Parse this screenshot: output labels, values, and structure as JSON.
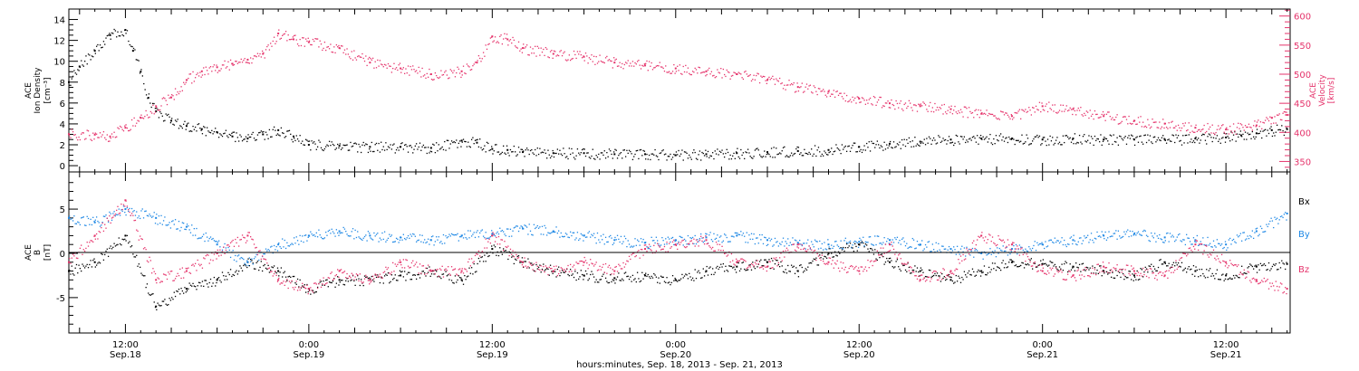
{
  "xlabel": "hours:minutes, Sep. 18, 2013 - Sep. 21, 2013",
  "x_ticks": [
    {
      "hours": 12,
      "time": "12:00",
      "date": "Sep.18"
    },
    {
      "hours": 24,
      "time": "0:00",
      "date": "Sep.19"
    },
    {
      "hours": 36,
      "time": "12:00",
      "date": "Sep.19"
    },
    {
      "hours": 48,
      "time": "0:00",
      "date": "Sep.20"
    },
    {
      "hours": 60,
      "time": "12:00",
      "date": "Sep.20"
    },
    {
      "hours": 72,
      "time": "0:00",
      "date": "Sep.21"
    },
    {
      "hours": 84,
      "time": "12:00",
      "date": "Sep.21"
    }
  ],
  "colors": {
    "black": "#000000",
    "pink": "#e5336b",
    "blue": "#1e88e5"
  },
  "chart_data": [
    {
      "type": "scatter",
      "panel": "top",
      "xlim_hours": [
        8.3,
        88.2
      ],
      "left_axis": {
        "label_lines": [
          "ACE",
          "Ion Density",
          "[cm⁻³]"
        ],
        "ylim": [
          -0.6,
          15
        ],
        "ticks": [
          0,
          2,
          4,
          6,
          8,
          10,
          12,
          14
        ]
      },
      "right_axis": {
        "label_lines": [
          "ACE",
          "Velocity",
          "[km/s]"
        ],
        "ylim": [
          332,
          612
        ],
        "ticks": [
          350,
          400,
          450,
          500,
          550,
          600
        ]
      },
      "series": [
        {
          "axis": "left",
          "color": "#000000",
          "x": [
            8.3,
            9,
            10,
            11,
            12,
            12.5,
            13,
            13.5,
            14,
            15,
            16,
            17,
            18,
            19,
            20,
            21,
            22,
            23,
            24,
            26,
            28,
            30,
            32,
            34,
            35,
            36,
            37,
            38,
            40,
            42,
            44,
            46,
            48,
            50,
            52,
            54,
            56,
            58,
            60,
            62,
            64,
            66,
            68,
            70,
            72,
            74,
            76,
            78,
            80,
            82,
            84,
            85,
            86,
            87,
            88
          ],
          "y": [
            8,
            9.5,
            11,
            12.5,
            13,
            11,
            9,
            6.5,
            5.2,
            4.3,
            3.8,
            3.5,
            3.2,
            2.8,
            2.6,
            3,
            3.4,
            2.8,
            2,
            1.9,
            1.8,
            1.8,
            1.7,
            2.4,
            2.2,
            1.6,
            1.5,
            1.3,
            1.2,
            1.2,
            1.1,
            1.1,
            1,
            1.1,
            1.2,
            1.3,
            1.4,
            1.5,
            1.8,
            2.1,
            2.3,
            2.5,
            2.6,
            2.6,
            2.5,
            2.6,
            2.5,
            2.5,
            2.5,
            2.6,
            2.7,
            2.9,
            3.1,
            3.4,
            3.5
          ]
        },
        {
          "axis": "right",
          "color": "#e5336b",
          "x": [
            8.3,
            10,
            11,
            12,
            13,
            14,
            15,
            16,
            17,
            18,
            19,
            20,
            21,
            22,
            23,
            24,
            26,
            28,
            30,
            32,
            34,
            35,
            36,
            37,
            38,
            40,
            42,
            44,
            46,
            48,
            50,
            52,
            54,
            56,
            58,
            60,
            62,
            64,
            66,
            68,
            70,
            72,
            74,
            76,
            78,
            80,
            82,
            84,
            86,
            87,
            88
          ],
          "y": [
            397,
            396,
            393,
            408,
            425,
            445,
            460,
            490,
            505,
            512,
            518,
            525,
            535,
            570,
            560,
            555,
            545,
            520,
            510,
            500,
            505,
            520,
            565,
            560,
            545,
            535,
            530,
            520,
            515,
            510,
            505,
            500,
            490,
            478,
            470,
            458,
            450,
            445,
            440,
            432,
            428,
            445,
            440,
            428,
            420,
            415,
            408,
            405,
            412,
            425,
            430
          ]
        }
      ]
    },
    {
      "type": "scatter",
      "panel": "bottom",
      "xlim_hours": [
        8.3,
        88.2
      ],
      "left_axis": {
        "label_lines": [
          "ACE",
          "B",
          "[nT]"
        ],
        "ylim": [
          -9,
          9.2
        ],
        "ticks": [
          -5,
          0,
          5
        ]
      },
      "zero_line": true,
      "series": [
        {
          "name": "Bx",
          "color": "#000000",
          "x": [
            8.3,
            10,
            12,
            14,
            16,
            18,
            20,
            22,
            24,
            26,
            28,
            30,
            32,
            34,
            36,
            38,
            40,
            42,
            44,
            46,
            48,
            50,
            52,
            54,
            56,
            58,
            60,
            62,
            64,
            66,
            68,
            70,
            72,
            74,
            76,
            78,
            80,
            82,
            84,
            86,
            88
          ],
          "y": [
            -2,
            -1,
            2,
            -6,
            -4,
            -3,
            -1,
            -2,
            -4,
            -3,
            -3,
            -2.5,
            -2,
            -3,
            0.5,
            -1,
            -2,
            -2.5,
            -2.8,
            -2.5,
            -3,
            -2,
            -1.5,
            -1,
            -2,
            0,
            1,
            -1,
            -2,
            -3,
            -2,
            -1,
            -1.2,
            -1.5,
            -2,
            -2.5,
            -1,
            -2,
            -2.5,
            -1.5,
            -1.2
          ]
        },
        {
          "name": "By",
          "color": "#1e88e5",
          "x": [
            8.3,
            10,
            12,
            14,
            16,
            18,
            20,
            22,
            24,
            26,
            28,
            30,
            32,
            34,
            36,
            38,
            40,
            42,
            44,
            46,
            48,
            50,
            52,
            54,
            56,
            58,
            60,
            62,
            64,
            66,
            68,
            70,
            72,
            74,
            76,
            78,
            80,
            82,
            84,
            86,
            88
          ],
          "y": [
            4,
            3.5,
            5,
            4,
            3,
            1,
            -1,
            1,
            2,
            2.5,
            2,
            1.8,
            1.5,
            2,
            2.2,
            2.8,
            2.5,
            2,
            1.5,
            1.2,
            1.5,
            1.8,
            2,
            1.5,
            1.2,
            1,
            1.3,
            1.5,
            1,
            0.5,
            0,
            0.5,
            1,
            1.5,
            2,
            2.2,
            1.8,
            1.5,
            1,
            2.5,
            4.5
          ]
        },
        {
          "name": "Bz",
          "color": "#e5336b",
          "x": [
            8.3,
            10,
            12,
            14,
            16,
            18,
            20,
            22,
            24,
            26,
            28,
            30,
            32,
            34,
            36,
            38,
            40,
            42,
            44,
            46,
            48,
            50,
            52,
            54,
            56,
            58,
            60,
            62,
            64,
            66,
            68,
            70,
            72,
            74,
            76,
            78,
            80,
            82,
            84,
            86,
            88
          ],
          "y": [
            -1,
            2,
            6,
            -3,
            -2,
            0,
            2,
            -3,
            -4,
            -2,
            -3,
            -1,
            -2,
            -2,
            2,
            -1,
            -2,
            -1,
            -2,
            0.5,
            1,
            1.5,
            -1,
            -1.5,
            1,
            -1,
            -2,
            1,
            -3,
            -2,
            2,
            1,
            -2,
            -2.5,
            -1.5,
            -2,
            -2.5,
            1,
            -1,
            -3,
            -4
          ]
        }
      ],
      "legend": [
        "Bx",
        "By",
        "Bz"
      ]
    }
  ]
}
